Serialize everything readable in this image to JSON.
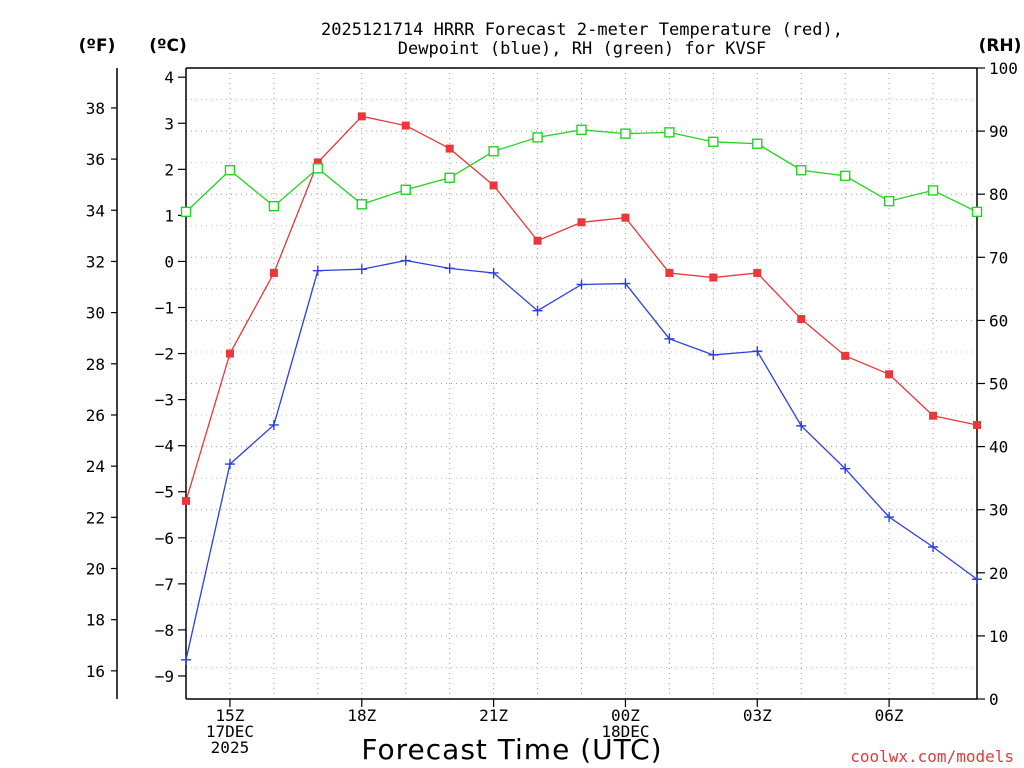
{
  "chart_data": {
    "type": "line",
    "title_lines": [
      "2025121714 HRRR Forecast 2-meter Temperature (red),",
      "Dewpoint (blue), RH (green) for KVSF"
    ],
    "xlabel": "Forecast Time (UTC)",
    "credit": "coolwx.com/models",
    "units": {
      "fahrenheit": "(ºF)",
      "celsius": "(ºC)",
      "rh": "(RH)"
    },
    "x": [
      14,
      15,
      16,
      17,
      18,
      19,
      20,
      21,
      22,
      23,
      24,
      25,
      26,
      27,
      28,
      29,
      30,
      31,
      32
    ],
    "xlim": [
      14,
      32
    ],
    "x_ticks": [
      {
        "x": 15,
        "lines": [
          "15Z",
          "17DEC",
          "2025"
        ]
      },
      {
        "x": 18,
        "lines": [
          "18Z"
        ]
      },
      {
        "x": 21,
        "lines": [
          "21Z"
        ]
      },
      {
        "x": 24,
        "lines": [
          "00Z",
          "18DEC"
        ]
      },
      {
        "x": 27,
        "lines": [
          "03Z"
        ]
      },
      {
        "x": 30,
        "lines": [
          "06Z"
        ]
      }
    ],
    "celsius_axis": {
      "ylim": [
        -9.5,
        4.2
      ],
      "ticks": [
        "4",
        "3",
        "2",
        "1",
        "0",
        "-1",
        "-2",
        "-3",
        "-4",
        "-5",
        "-6",
        "-7",
        "-8",
        "-9"
      ]
    },
    "fahrenheit_axis": {
      "ticks": [
        "38",
        "36",
        "34",
        "32",
        "30",
        "28",
        "26",
        "24",
        "22",
        "20",
        "18",
        "16"
      ]
    },
    "rh_axis": {
      "ylim": [
        0,
        100
      ],
      "ticks": [
        "100",
        "90",
        "80",
        "70",
        "60",
        "50",
        "40",
        "30",
        "20",
        "10",
        "0"
      ]
    },
    "series": [
      {
        "name": "Temperature",
        "unit": "C",
        "color": "#e8383a",
        "marker": "filled-square",
        "values": [
          -5.2,
          -2.0,
          -0.25,
          2.15,
          3.15,
          2.95,
          2.45,
          1.65,
          0.45,
          0.85,
          0.95,
          -0.25,
          -0.35,
          -0.25,
          -1.25,
          -2.05,
          -2.45,
          -3.35,
          -3.55
        ]
      },
      {
        "name": "Dewpoint",
        "unit": "C",
        "color": "#2a3fe0",
        "marker": "plus",
        "values": [
          -8.65,
          -4.4,
          -3.55,
          -0.2,
          -0.17,
          0.02,
          -0.15,
          -0.25,
          -1.07,
          -0.5,
          -0.48,
          -1.68,
          -2.03,
          -1.95,
          -3.57,
          -4.5,
          -5.55,
          -6.2,
          -6.9
        ]
      },
      {
        "name": "RH",
        "unit": "%",
        "color": "#22d422",
        "marker": "open-square",
        "values": [
          77.2,
          83.8,
          78.1,
          84.1,
          78.4,
          80.7,
          82.6,
          86.8,
          89.0,
          90.2,
          89.6,
          89.8,
          88.3,
          88.0,
          83.8,
          82.9,
          78.9,
          80.6,
          77.2
        ]
      }
    ],
    "grid": true
  }
}
